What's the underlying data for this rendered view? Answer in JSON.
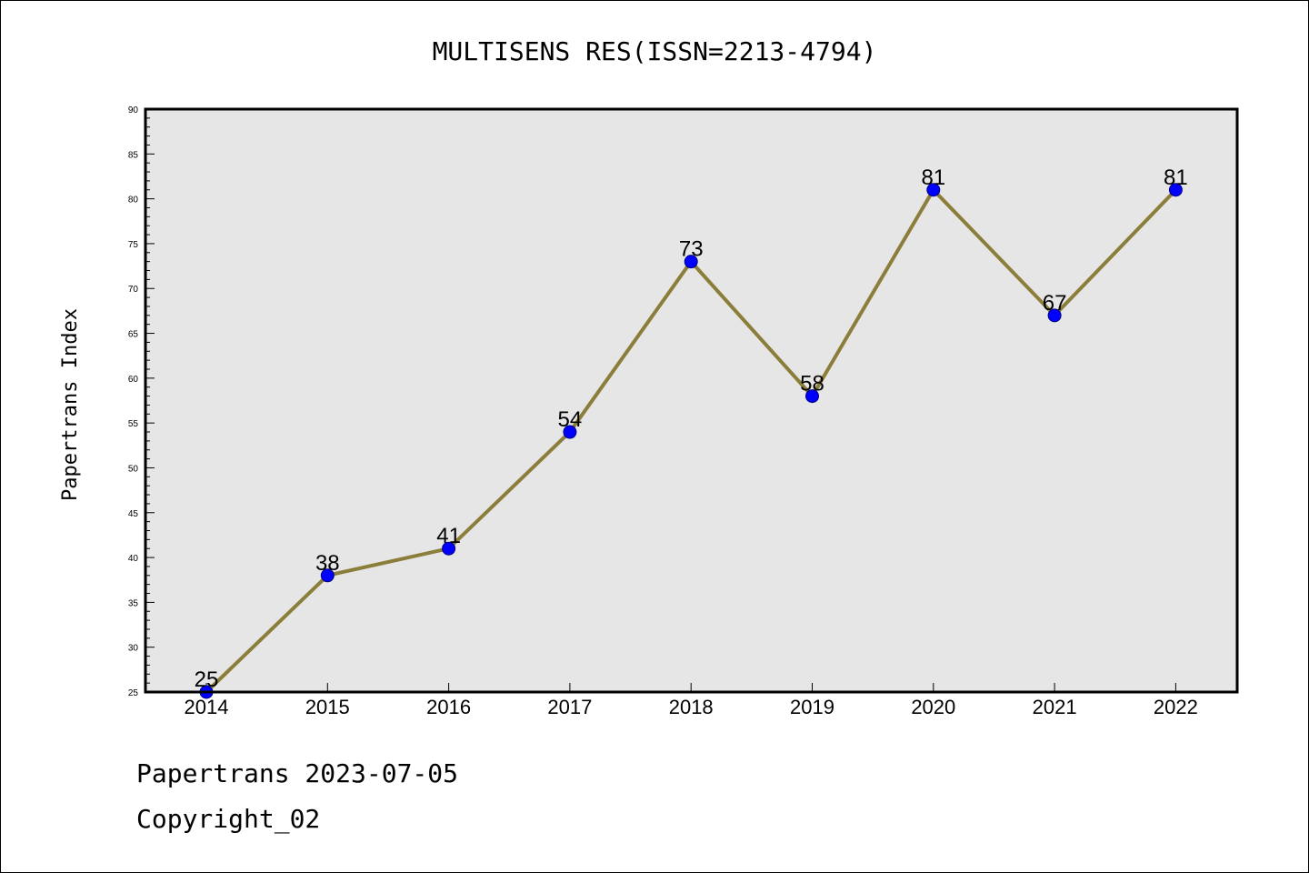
{
  "chart_data": {
    "type": "line",
    "title": "MULTISENS RES(ISSN=2213-4794)",
    "xlabel": "",
    "ylabel": "Papertrans Index",
    "categories": [
      "2014",
      "2015",
      "2016",
      "2017",
      "2018",
      "2019",
      "2020",
      "2021",
      "2022"
    ],
    "series": [
      {
        "values": [
          25,
          38,
          41,
          54,
          73,
          58,
          81,
          67,
          81
        ]
      }
    ],
    "ylim": [
      25,
      90
    ],
    "yticks": [
      25,
      30,
      35,
      40,
      45,
      50,
      55,
      60,
      65,
      70,
      75,
      80,
      85,
      90
    ],
    "grid": false,
    "data_labels": true,
    "colors": {
      "line": "#8b7d3a",
      "marker": "#0000ff",
      "marker_edge": "#000080",
      "plot_background": "#e6e6e6"
    }
  },
  "footer": {
    "line1": "Papertrans 2023-07-05",
    "line2": "Copyright_02"
  }
}
